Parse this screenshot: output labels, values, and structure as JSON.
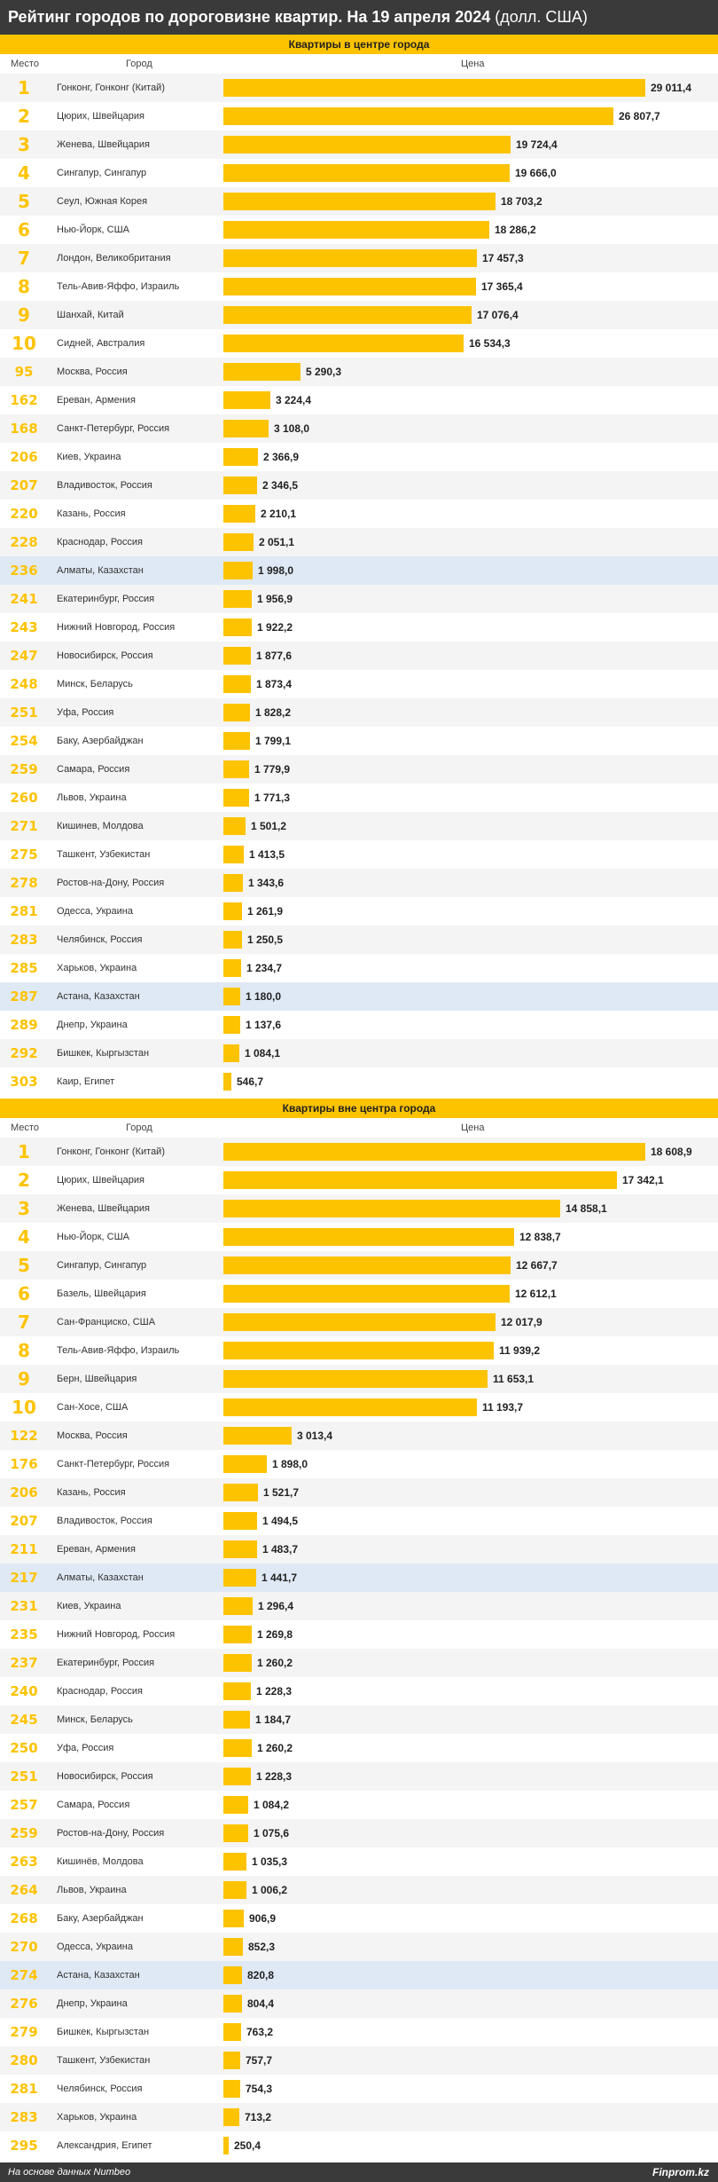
{
  "title": {
    "main": "Рейтинг городов по дороговизне квартир. На 19 апреля 2024",
    "unit": "(долл. США)"
  },
  "columns": {
    "rank": "Место",
    "city": "Город",
    "price": "Цена"
  },
  "colors": {
    "accent": "#fdc300",
    "highlight_row": "#dfe9f5",
    "dark_bar": "#3a3a3a"
  },
  "footer": {
    "source": "На основе данных Numbeo",
    "brand": "Finprom.kz"
  },
  "chart_data": [
    {
      "type": "bar",
      "orientation": "horizontal",
      "title": "Квартиры в центре города",
      "highlighted": [
        "Алматы, Казахстан",
        "Астана, Казахстан"
      ],
      "rows": [
        {
          "rank": "1",
          "city": "Гонконг, Гонконг (Китай)",
          "value": 29011.4,
          "label": "29 011,4"
        },
        {
          "rank": "2",
          "city": "Цюрих, Швейцария",
          "value": 26807.7,
          "label": "26 807,7"
        },
        {
          "rank": "3",
          "city": "Женева, Швейцария",
          "value": 19724.4,
          "label": "19 724,4"
        },
        {
          "rank": "4",
          "city": "Сингапур, Сингапур",
          "value": 19666.0,
          "label": "19 666,0"
        },
        {
          "rank": "5",
          "city": "Сеул, Южная Корея",
          "value": 18703.2,
          "label": "18 703,2"
        },
        {
          "rank": "6",
          "city": "Нью-Йорк, США",
          "value": 18286.2,
          "label": "18 286,2"
        },
        {
          "rank": "7",
          "city": "Лондон, Великобритания",
          "value": 17457.3,
          "label": "17 457,3"
        },
        {
          "rank": "8",
          "city": "Тель-Авив-Яффо, Израиль",
          "value": 17365.4,
          "label": "17 365,4"
        },
        {
          "rank": "9",
          "city": "Шанхай, Китай",
          "value": 17076.4,
          "label": "17 076,4"
        },
        {
          "rank": "10",
          "city": "Сидней, Австралия",
          "value": 16534.3,
          "label": "16 534,3"
        },
        {
          "rank": "95",
          "city": "Москва, Россия",
          "value": 5290.3,
          "label": "5 290,3"
        },
        {
          "rank": "162",
          "city": "Ереван, Армения",
          "value": 3224.4,
          "label": "3 224,4"
        },
        {
          "rank": "168",
          "city": "Санкт-Петербург, Россия",
          "value": 3108.0,
          "label": "3 108,0"
        },
        {
          "rank": "206",
          "city": "Киев, Украина",
          "value": 2366.9,
          "label": "2 366,9"
        },
        {
          "rank": "207",
          "city": "Владивосток, Россия",
          "value": 2346.5,
          "label": "2 346,5"
        },
        {
          "rank": "220",
          "city": "Казань, Россия",
          "value": 2210.1,
          "label": "2 210,1"
        },
        {
          "rank": "228",
          "city": "Краснодар, Россия",
          "value": 2051.1,
          "label": "2 051,1"
        },
        {
          "rank": "236",
          "city": "Алматы, Казахстан",
          "value": 1998.0,
          "label": "1 998,0"
        },
        {
          "rank": "241",
          "city": "Екатеринбург, Россия",
          "value": 1956.9,
          "label": "1 956,9"
        },
        {
          "rank": "243",
          "city": "Нижний Новгород, Россия",
          "value": 1922.2,
          "label": "1 922,2"
        },
        {
          "rank": "247",
          "city": "Новосибирск, Россия",
          "value": 1877.6,
          "label": "1 877,6"
        },
        {
          "rank": "248",
          "city": "Минск, Беларусь",
          "value": 1873.4,
          "label": "1 873,4"
        },
        {
          "rank": "251",
          "city": "Уфа, Россия",
          "value": 1828.2,
          "label": "1 828,2"
        },
        {
          "rank": "254",
          "city": "Баку, Азербайджан",
          "value": 1799.1,
          "label": "1 799,1"
        },
        {
          "rank": "259",
          "city": "Самара, Россия",
          "value": 1779.9,
          "label": "1 779,9"
        },
        {
          "rank": "260",
          "city": "Львов, Украина",
          "value": 1771.3,
          "label": "1 771,3"
        },
        {
          "rank": "271",
          "city": "Кишинев, Молдова",
          "value": 1501.2,
          "label": "1 501,2"
        },
        {
          "rank": "275",
          "city": "Ташкент, Узбекистан",
          "value": 1413.5,
          "label": "1 413,5"
        },
        {
          "rank": "278",
          "city": "Ростов-на-Дону, Россия",
          "value": 1343.6,
          "label": "1 343,6"
        },
        {
          "rank": "281",
          "city": "Одесса, Украина",
          "value": 1261.9,
          "label": "1 261,9"
        },
        {
          "rank": "283",
          "city": "Челябинск, Россия",
          "value": 1250.5,
          "label": "1 250,5"
        },
        {
          "rank": "285",
          "city": "Харьков, Украина",
          "value": 1234.7,
          "label": "1 234,7"
        },
        {
          "rank": "287",
          "city": "Астана, Казахстан",
          "value": 1180.0,
          "label": "1 180,0"
        },
        {
          "rank": "289",
          "city": "Днепр, Украина",
          "value": 1137.6,
          "label": "1 137,6"
        },
        {
          "rank": "292",
          "city": "Бишкек, Кыргызстан",
          "value": 1084.1,
          "label": "1 084,1"
        },
        {
          "rank": "303",
          "city": "Каир, Египет",
          "value": 546.7,
          "label": "546,7"
        }
      ]
    },
    {
      "type": "bar",
      "orientation": "horizontal",
      "title": "Квартиры вне центра города",
      "highlighted": [
        "Алматы, Казахстан",
        "Астана, Казахстан"
      ],
      "rows": [
        {
          "rank": "1",
          "city": "Гонконг, Гонконг (Китай)",
          "value": 18608.9,
          "label": "18 608,9"
        },
        {
          "rank": "2",
          "city": "Цюрих, Швейцария",
          "value": 17342.1,
          "label": "17 342,1"
        },
        {
          "rank": "3",
          "city": "Женева, Швейцария",
          "value": 14858.1,
          "label": "14 858,1"
        },
        {
          "rank": "4",
          "city": "Нью-Йорк, США",
          "value": 12838.7,
          "label": "12 838,7"
        },
        {
          "rank": "5",
          "city": "Сингапур, Сингапур",
          "value": 12667.7,
          "label": "12 667,7"
        },
        {
          "rank": "6",
          "city": "Базель, Швейцария",
          "value": 12612.1,
          "label": "12 612,1"
        },
        {
          "rank": "7",
          "city": "Сан-Франциско, США",
          "value": 12017.9,
          "label": "12 017,9"
        },
        {
          "rank": "8",
          "city": "Тель-Авив-Яффо, Израиль",
          "value": 11939.2,
          "label": "11 939,2"
        },
        {
          "rank": "9",
          "city": "Берн, Швейцария",
          "value": 11653.1,
          "label": "11 653,1"
        },
        {
          "rank": "10",
          "city": "Сан-Хосе, США",
          "value": 11193.7,
          "label": "11 193,7"
        },
        {
          "rank": "122",
          "city": "Москва, Россия",
          "value": 3013.4,
          "label": "3 013,4"
        },
        {
          "rank": "176",
          "city": "Санкт-Петербург, Россия",
          "value": 1898.0,
          "label": "1 898,0"
        },
        {
          "rank": "206",
          "city": "Казань, Россия",
          "value": 1521.7,
          "label": "1 521,7"
        },
        {
          "rank": "207",
          "city": "Владивосток, Россия",
          "value": 1494.5,
          "label": "1 494,5"
        },
        {
          "rank": "211",
          "city": "Ереван, Армения",
          "value": 1483.7,
          "label": "1 483,7"
        },
        {
          "rank": "217",
          "city": "Алматы, Казахстан",
          "value": 1441.7,
          "label": "1 441,7"
        },
        {
          "rank": "231",
          "city": "Киев, Украина",
          "value": 1296.4,
          "label": "1 296,4"
        },
        {
          "rank": "235",
          "city": "Нижний Новгород, Россия",
          "value": 1269.8,
          "label": "1 269,8"
        },
        {
          "rank": "237",
          "city": "Екатеринбург, Россия",
          "value": 1260.2,
          "label": "1 260,2"
        },
        {
          "rank": "240",
          "city": "Краснодар, Россия",
          "value": 1228.3,
          "label": "1 228,3"
        },
        {
          "rank": "245",
          "city": "Минск, Беларусь",
          "value": 1184.7,
          "label": "1 184,7"
        },
        {
          "rank": "250",
          "city": "Уфа, Россия",
          "value": 1260.2,
          "label": "1 260,2"
        },
        {
          "rank": "251",
          "city": "Новосибирск, Россия",
          "value": 1228.3,
          "label": "1 228,3"
        },
        {
          "rank": "257",
          "city": "Самара, Россия",
          "value": 1084.2,
          "label": "1 084,2"
        },
        {
          "rank": "259",
          "city": "Ростов-на-Дону, Россия",
          "value": 1075.6,
          "label": "1 075,6"
        },
        {
          "rank": "263",
          "city": "Кишинёв, Молдова",
          "value": 1035.3,
          "label": "1 035,3"
        },
        {
          "rank": "264",
          "city": "Львов, Украина",
          "value": 1006.2,
          "label": "1 006,2"
        },
        {
          "rank": "268",
          "city": "Баку, Азербайджан",
          "value": 906.9,
          "label": "906,9"
        },
        {
          "rank": "270",
          "city": "Одесса, Украина",
          "value": 852.3,
          "label": "852,3"
        },
        {
          "rank": "274",
          "city": "Астана, Казахстан",
          "value": 820.8,
          "label": "820,8"
        },
        {
          "rank": "276",
          "city": "Днепр, Украина",
          "value": 804.4,
          "label": "804,4"
        },
        {
          "rank": "279",
          "city": "Бишкек, Кыргызстан",
          "value": 763.2,
          "label": "763,2"
        },
        {
          "rank": "280",
          "city": "Ташкент, Узбекистан",
          "value": 757.7,
          "label": "757,7"
        },
        {
          "rank": "281",
          "city": "Челябинск, Россия",
          "value": 754.3,
          "label": "754,3"
        },
        {
          "rank": "283",
          "city": "Харьков, Украина",
          "value": 713.2,
          "label": "713,2"
        },
        {
          "rank": "295",
          "city": "Александрия, Египет",
          "value": 250.4,
          "label": "250,4"
        }
      ]
    }
  ]
}
